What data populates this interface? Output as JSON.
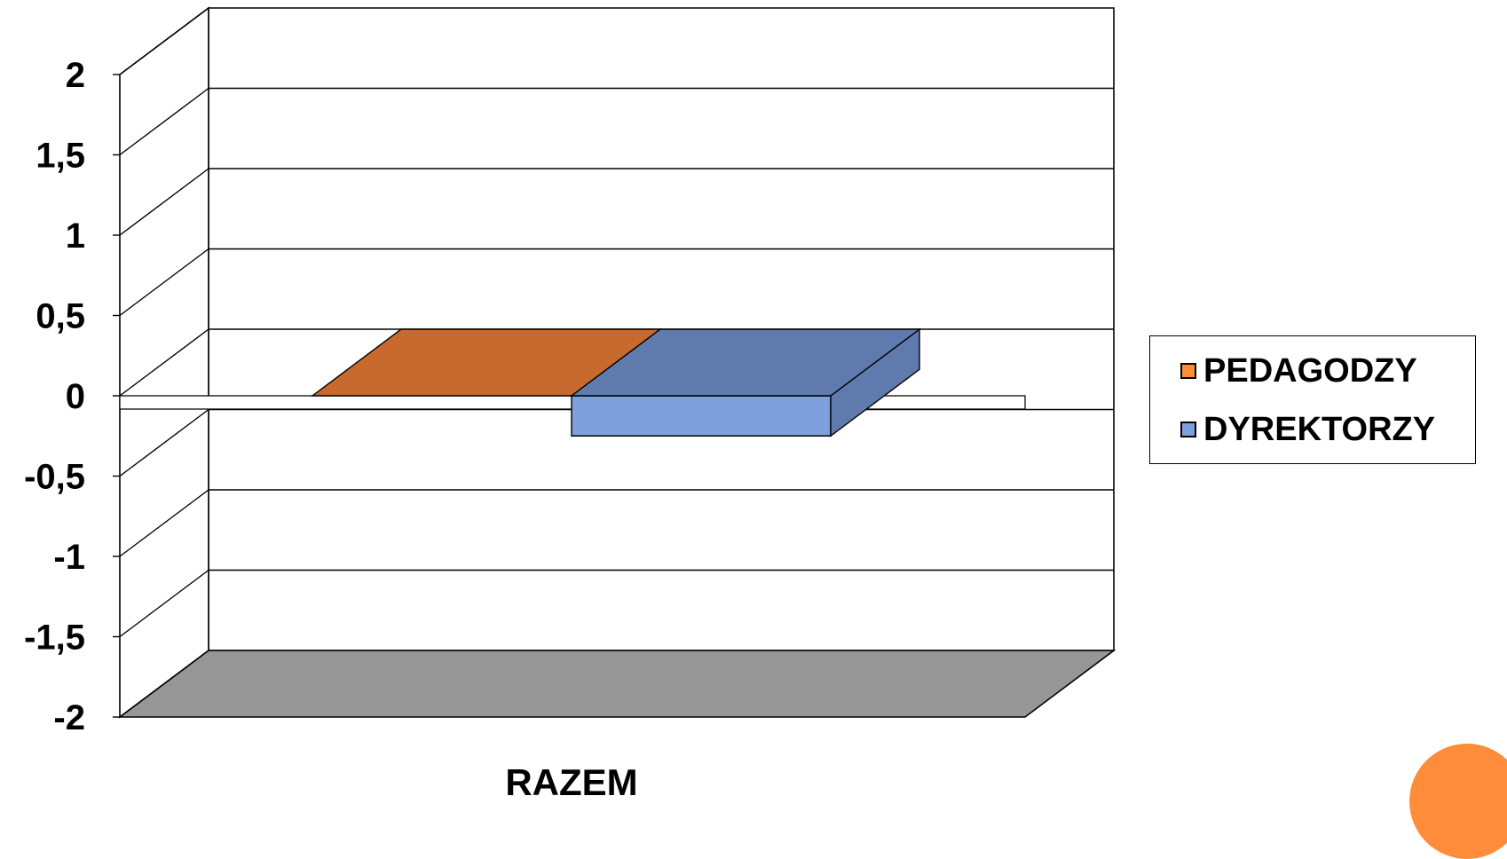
{
  "chart_data": {
    "type": "bar",
    "style": "3d",
    "categories": [
      "RAZEM"
    ],
    "series": [
      {
        "name": "PEDAGODZY",
        "values": [
          0
        ],
        "color": "#FF8C3A",
        "side_color": "#C8692E"
      },
      {
        "name": "DYREKTORZY",
        "values": [
          -0.25
        ],
        "color": "#7EA1DD",
        "side_color": "#5F7BAE"
      }
    ],
    "ylim": [
      -2,
      2
    ],
    "yticks": [
      "2",
      "1,5",
      "1",
      "0,5",
      "0",
      "-0,5",
      "-1",
      "-1,5",
      "-2"
    ],
    "ytick_values": [
      2,
      1.5,
      1,
      0.5,
      0,
      -0.5,
      -1,
      -1.5,
      -2
    ],
    "grid": true,
    "legend_position": "right",
    "floor_color": "#969696",
    "accent_color": "#FF8C3A"
  }
}
